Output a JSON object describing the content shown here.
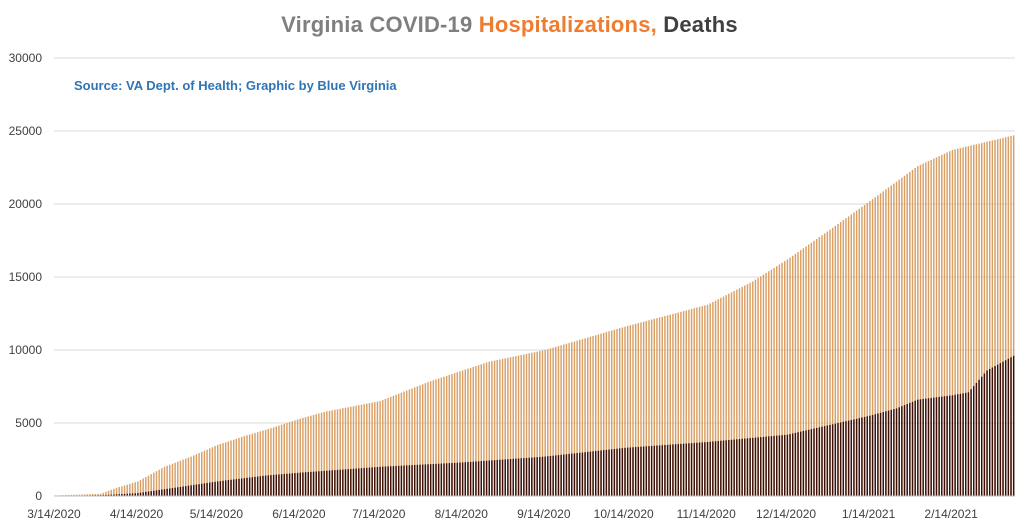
{
  "title": {
    "part1": "Virginia COVID-19 ",
    "part2": "Hospitalizations,",
    "part3": " Deaths"
  },
  "source_note": "Source: VA Dept. of Health; Graphic by Blue Virginia",
  "colors": {
    "hospitalizations": "#d9a066",
    "deaths": "#3a0f08",
    "grid": "#d9d9d9",
    "title_gray": "#7f7f7f",
    "title_orange": "#ed7d31",
    "title_dark": "#404040",
    "source_blue": "#2e75b6"
  },
  "chart_data": {
    "type": "bar",
    "title": "Virginia COVID-19 Hospitalizations, Deaths",
    "ylim": [
      0,
      30000
    ],
    "yticks": [
      0,
      5000,
      10000,
      15000,
      20000,
      25000,
      30000
    ],
    "xtick_labels": [
      "3/14/2020",
      "4/14/2020",
      "5/14/2020",
      "6/14/2020",
      "7/14/2020",
      "8/14/2020",
      "9/14/2020",
      "10/14/2020",
      "11/14/2020",
      "12/14/2020",
      "1/14/2021",
      "2/14/2021"
    ],
    "x_start": "3/14/2020",
    "x_end": "3/9/2021",
    "grid": true,
    "series": [
      {
        "name": "Hospitalizations",
        "points": [
          [
            "3/14/2020",
            40
          ],
          [
            "3/31/2020",
            150
          ],
          [
            "4/5/2020",
            500
          ],
          [
            "4/14/2020",
            1000
          ],
          [
            "4/24/2020",
            2000
          ],
          [
            "5/4/2020",
            2700
          ],
          [
            "5/14/2020",
            3500
          ],
          [
            "5/24/2020",
            4100
          ],
          [
            "6/4/2020",
            4700
          ],
          [
            "6/14/2020",
            5300
          ],
          [
            "6/24/2020",
            5800
          ],
          [
            "7/14/2020",
            6500
          ],
          [
            "8/1/2020",
            7800
          ],
          [
            "8/14/2020",
            8600
          ],
          [
            "8/24/2020",
            9200
          ],
          [
            "9/14/2020",
            10000
          ],
          [
            "10/14/2020",
            11600
          ],
          [
            "11/14/2020",
            13100
          ],
          [
            "12/1/2020",
            14700
          ],
          [
            "12/14/2020",
            16200
          ],
          [
            "1/1/2021",
            18500
          ],
          [
            "1/14/2021",
            20200
          ],
          [
            "2/1/2021",
            22600
          ],
          [
            "2/14/2021",
            23700
          ],
          [
            "3/9/2021",
            24700
          ]
        ]
      },
      {
        "name": "Deaths",
        "points": [
          [
            "3/14/2020",
            5
          ],
          [
            "4/1/2020",
            60
          ],
          [
            "4/14/2020",
            200
          ],
          [
            "5/1/2020",
            650
          ],
          [
            "5/14/2020",
            1000
          ],
          [
            "6/1/2020",
            1400
          ],
          [
            "6/14/2020",
            1600
          ],
          [
            "7/14/2020",
            2000
          ],
          [
            "8/14/2020",
            2300
          ],
          [
            "9/14/2020",
            2700
          ],
          [
            "10/14/2020",
            3300
          ],
          [
            "11/14/2020",
            3700
          ],
          [
            "12/14/2020",
            4200
          ],
          [
            "1/14/2021",
            5500
          ],
          [
            "1/24/2021",
            6000
          ],
          [
            "2/1/2021",
            6600
          ],
          [
            "2/14/2021",
            6900
          ],
          [
            "2/20/2021",
            7100
          ],
          [
            "2/27/2021",
            8600
          ],
          [
            "3/9/2021",
            9600
          ]
        ]
      }
    ]
  }
}
